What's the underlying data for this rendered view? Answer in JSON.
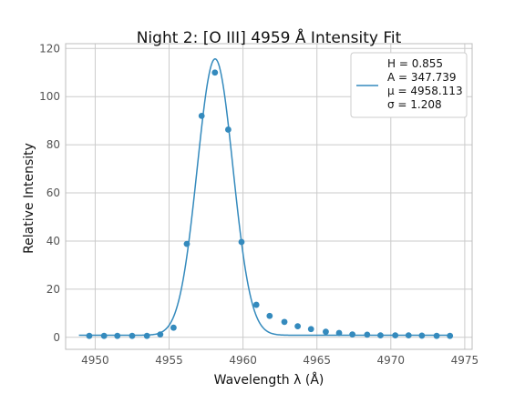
{
  "chart_data": {
    "type": "scatter",
    "title": "Night 2: [O III] 4959 Å Intensity Fit",
    "xlabel": "Wavelength λ (Å)",
    "ylabel": "Relative Intensity",
    "xlim": [
      4948,
      4975.5
    ],
    "ylim": [
      -5,
      122
    ],
    "xticks": [
      4950,
      4955,
      4960,
      4965,
      4970,
      4975
    ],
    "yticks": [
      0,
      20,
      40,
      60,
      80,
      100,
      120
    ],
    "grid": true,
    "legend_position": "top-right",
    "legend_entries": [
      "H = 0.855",
      "A = 347.739",
      "μ = 4958.113",
      "σ = 1.208"
    ],
    "fit": {
      "H": 0.855,
      "A": 347.739,
      "mu": 4958.113,
      "sigma": 1.208,
      "x_range": [
        4948.9,
        4973.9
      ]
    },
    "series": [
      {
        "kind": "points",
        "color": "#348abd",
        "x": [
          4949.6,
          4950.6,
          4951.5,
          4952.5,
          4953.5,
          4954.4,
          4955.3,
          4956.2,
          4957.2,
          4958.1,
          4959.0,
          4959.9,
          4960.9,
          4961.8,
          4962.8,
          4963.7,
          4964.6,
          4965.6,
          4966.5,
          4967.4,
          4968.4,
          4969.3,
          4970.3,
          4971.2,
          4972.1,
          4973.1,
          4974.0
        ],
        "y": [
          0.6,
          0.6,
          0.6,
          0.6,
          0.6,
          1.2,
          4.0,
          38.8,
          92.0,
          110.0,
          86.3,
          39.6,
          13.5,
          8.9,
          6.4,
          4.6,
          3.4,
          2.3,
          1.8,
          1.2,
          1.1,
          0.8,
          0.8,
          0.8,
          0.7,
          0.6,
          0.6
        ]
      },
      {
        "kind": "fit-line",
        "color": "#348abd"
      }
    ]
  }
}
